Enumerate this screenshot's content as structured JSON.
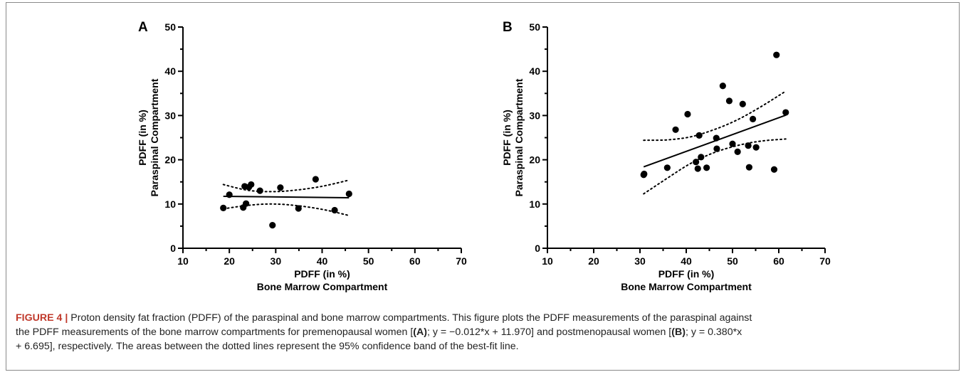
{
  "chart_data": [
    {
      "type": "scatter",
      "panel_label": "A",
      "xlabel": "PDFF (in %)",
      "xlabel2": "Bone Marrow Compartment",
      "ylabel": "PDFF (in %)",
      "ylabel2": "Paraspinal Compartment",
      "xlim": [
        10,
        70
      ],
      "ylim": [
        0,
        50
      ],
      "xticks": [
        "10",
        "20",
        "30",
        "40",
        "50",
        "60",
        "70"
      ],
      "yticks": [
        "0",
        "10",
        "20",
        "30",
        "40",
        "50"
      ],
      "points": [
        {
          "x": 18.7,
          "y": 9.1
        },
        {
          "x": 20.0,
          "y": 12.1
        },
        {
          "x": 23.0,
          "y": 9.2
        },
        {
          "x": 23.3,
          "y": 14.0
        },
        {
          "x": 23.6,
          "y": 10.1
        },
        {
          "x": 24.2,
          "y": 13.8
        },
        {
          "x": 24.7,
          "y": 14.4
        },
        {
          "x": 26.6,
          "y": 13.0
        },
        {
          "x": 29.3,
          "y": 5.2
        },
        {
          "x": 31.0,
          "y": 13.7
        },
        {
          "x": 34.9,
          "y": 9.0
        },
        {
          "x": 38.6,
          "y": 15.6
        },
        {
          "x": 42.7,
          "y": 8.6
        },
        {
          "x": 45.8,
          "y": 12.3
        }
      ],
      "fit": {
        "slope": -0.012,
        "intercept": 11.97,
        "x_range": [
          18.7,
          45.8
        ]
      },
      "ci_upper": [
        [
          18.7,
          14.4
        ],
        [
          24,
          13.1
        ],
        [
          29,
          12.8
        ],
        [
          34,
          13.1
        ],
        [
          40,
          14.0
        ],
        [
          45.8,
          15.4
        ]
      ],
      "ci_lower": [
        [
          18.7,
          8.9
        ],
        [
          24,
          9.7
        ],
        [
          29,
          10.0
        ],
        [
          34,
          9.7
        ],
        [
          40,
          8.8
        ],
        [
          45.8,
          7.4
        ]
      ]
    },
    {
      "type": "scatter",
      "panel_label": "B",
      "xlabel": "PDFF (in %)",
      "xlabel2": "Bone Marrow Compartment",
      "ylabel": "PDFF (in %)",
      "ylabel2": "Paraspinal Compartment",
      "xlim": [
        10,
        70
      ],
      "ylim": [
        0,
        50
      ],
      "xticks": [
        "10",
        "20",
        "30",
        "40",
        "50",
        "60",
        "70"
      ],
      "yticks": [
        "0",
        "10",
        "20",
        "30",
        "40",
        "50"
      ],
      "points": [
        {
          "x": 30.8,
          "y": 16.6
        },
        {
          "x": 30.9,
          "y": 16.8
        },
        {
          "x": 35.9,
          "y": 18.2
        },
        {
          "x": 37.7,
          "y": 26.8
        },
        {
          "x": 40.3,
          "y": 30.3
        },
        {
          "x": 42.1,
          "y": 19.5
        },
        {
          "x": 42.5,
          "y": 18.0
        },
        {
          "x": 42.8,
          "y": 25.5
        },
        {
          "x": 43.2,
          "y": 20.6
        },
        {
          "x": 44.4,
          "y": 18.2
        },
        {
          "x": 46.5,
          "y": 24.9
        },
        {
          "x": 46.6,
          "y": 22.5
        },
        {
          "x": 47.9,
          "y": 36.7
        },
        {
          "x": 49.3,
          "y": 33.3
        },
        {
          "x": 50.0,
          "y": 23.6
        },
        {
          "x": 51.1,
          "y": 21.8
        },
        {
          "x": 52.2,
          "y": 32.6
        },
        {
          "x": 53.4,
          "y": 23.2
        },
        {
          "x": 53.6,
          "y": 18.3
        },
        {
          "x": 54.4,
          "y": 29.2
        },
        {
          "x": 55.1,
          "y": 22.8
        },
        {
          "x": 59.0,
          "y": 17.8
        },
        {
          "x": 59.5,
          "y": 43.7
        },
        {
          "x": 61.5,
          "y": 30.7
        }
      ],
      "fit": {
        "slope": 0.38,
        "intercept": 6.695,
        "x_range": [
          30.8,
          61.5
        ]
      },
      "ci_upper": [
        [
          30.8,
          24.4
        ],
        [
          36,
          24.5
        ],
        [
          41,
          25.2
        ],
        [
          46,
          26.8
        ],
        [
          51,
          29.0
        ],
        [
          56,
          31.9
        ],
        [
          61.5,
          35.5
        ]
      ],
      "ci_lower": [
        [
          30.8,
          12.3
        ],
        [
          36,
          15.9
        ],
        [
          41,
          19.2
        ],
        [
          46,
          21.6
        ],
        [
          51,
          23.2
        ],
        [
          56,
          24.2
        ],
        [
          61.5,
          24.7
        ]
      ]
    }
  ],
  "caption": {
    "figure_label": "FIGURE 4 |",
    "line1": " Proton density fat fraction (PDFF) of the paraspinal and bone marrow compartments. This figure plots the PDFF measurements of the paraspinal against",
    "line2a": "the PDFF measurements of the bone marrow compartments for premenopausal women [",
    "ref_a": "(A)",
    "line2b": "; y = −0.012*x + 11.970] and postmenopausal women [",
    "ref_b": "(B)",
    "line2c": "; y = 0.380*x",
    "line3": "+ 6.695], respectively. The areas between the dotted lines represent the 95% confidence band of the best-fit line."
  }
}
